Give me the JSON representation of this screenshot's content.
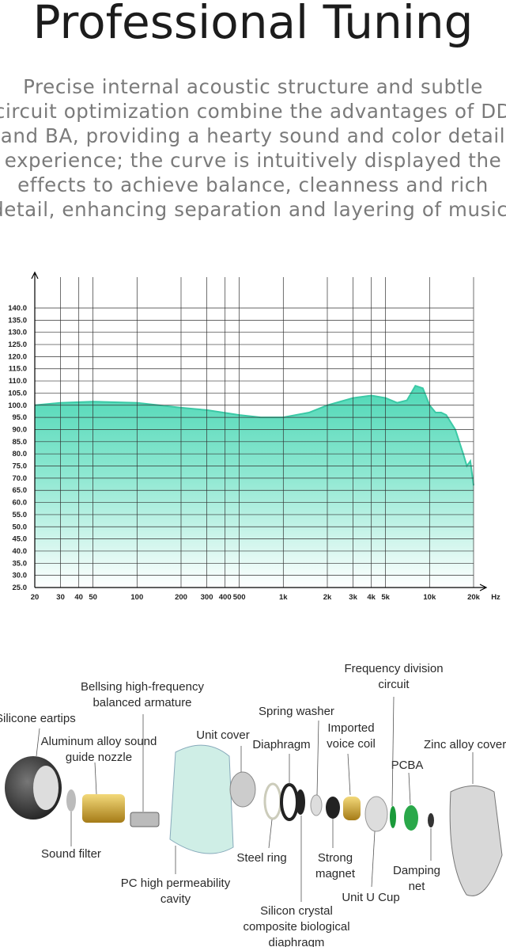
{
  "header": {
    "title": "Professional Tuning",
    "lines": [
      "Precise internal acoustic structure and subtle",
      "circuit optimization combine the advantages of DD",
      "and BA, providing a hearty sound and color detail",
      "experience; the curve is intuitively displayed the",
      "effects to achieve balance, cleanness and rich",
      "detail, enhancing separation and layering of music."
    ]
  },
  "chart_data": {
    "type": "line",
    "log_x": true,
    "grid": true,
    "color": "#3cc9a6",
    "x_unit": "Hz",
    "x": [
      20,
      30,
      50,
      100,
      200,
      300,
      500,
      700,
      1000,
      1500,
      2000,
      3000,
      4000,
      5000,
      6000,
      7000,
      8000,
      9000,
      10000,
      11000,
      12000,
      13000,
      15000,
      17000,
      18000,
      19000,
      20000
    ],
    "values": [
      100,
      101,
      101.5,
      101,
      99,
      98,
      96,
      95,
      95,
      97,
      100,
      103,
      104,
      103,
      101,
      102,
      108,
      107,
      100,
      97,
      97,
      96,
      90,
      80,
      75,
      77,
      67
    ],
    "xlim": [
      20,
      20000
    ],
    "xticks": [
      20,
      30,
      40,
      50,
      100,
      200,
      300,
      400,
      500,
      {
        "value": 1000,
        "label": "1k"
      },
      {
        "value": 2000,
        "label": "2k"
      },
      {
        "value": 3000,
        "label": "3k"
      },
      {
        "value": 4000,
        "label": "4k"
      },
      {
        "value": 5000,
        "label": "5k"
      },
      {
        "value": 10000,
        "label": "10k"
      },
      {
        "value": 20000,
        "label": "20k"
      }
    ],
    "ylim": [
      25,
      140
    ],
    "yticks": [
      {
        "value": 25,
        "label": "25.0"
      },
      {
        "value": 30,
        "label": "30.0"
      },
      {
        "value": 35,
        "label": "35.0"
      },
      {
        "value": 40,
        "label": "40.0"
      },
      {
        "value": 45,
        "label": "45.0"
      },
      {
        "value": 50,
        "label": "50.0"
      },
      {
        "value": 55,
        "label": "55.0"
      },
      {
        "value": 60,
        "label": "60.0"
      },
      {
        "value": 65,
        "label": "65.0"
      },
      {
        "value": 70,
        "label": "70.0"
      },
      {
        "value": 75,
        "label": "75.0"
      },
      {
        "value": 80,
        "label": "80.0"
      },
      {
        "value": 85,
        "label": "85.0"
      },
      {
        "value": 90,
        "label": "90.0"
      },
      {
        "value": 95,
        "label": "95.0"
      },
      {
        "value": 100,
        "label": "100.0"
      },
      {
        "value": 105,
        "label": "105.0"
      },
      {
        "value": 110,
        "label": "110.0"
      },
      {
        "value": 115,
        "label": "115.0"
      },
      {
        "value": 120,
        "label": "120.0"
      },
      {
        "value": 125,
        "label": "125.0"
      },
      {
        "value": 130,
        "label": "130.0"
      },
      {
        "value": 135,
        "label": "135.0"
      },
      {
        "value": 140,
        "label": "140.0"
      }
    ]
  },
  "diagram": {
    "labels": [
      [
        "Frequency division",
        "circuit"
      ],
      [
        "Bellsing high-frequency",
        "balanced armature"
      ],
      [
        "Spring washer"
      ],
      [
        "Silicone eartips"
      ],
      [
        "Imported",
        "voice coil"
      ],
      [
        "Unit cover"
      ],
      [
        "Diaphragm"
      ],
      [
        "Aluminum alloy sound",
        "guide nozzle"
      ],
      [
        "Zinc alloy cover"
      ],
      [
        "PCBA"
      ],
      [
        "Sound filter"
      ],
      [
        "Steel ring"
      ],
      [
        "Strong",
        "magnet"
      ],
      [
        "Damping",
        "net"
      ],
      [
        "PC high permeability",
        "cavity"
      ],
      [
        "Unit U Cup"
      ],
      [
        "Silicon crystal",
        "composite biological",
        "diaphragm"
      ]
    ]
  }
}
